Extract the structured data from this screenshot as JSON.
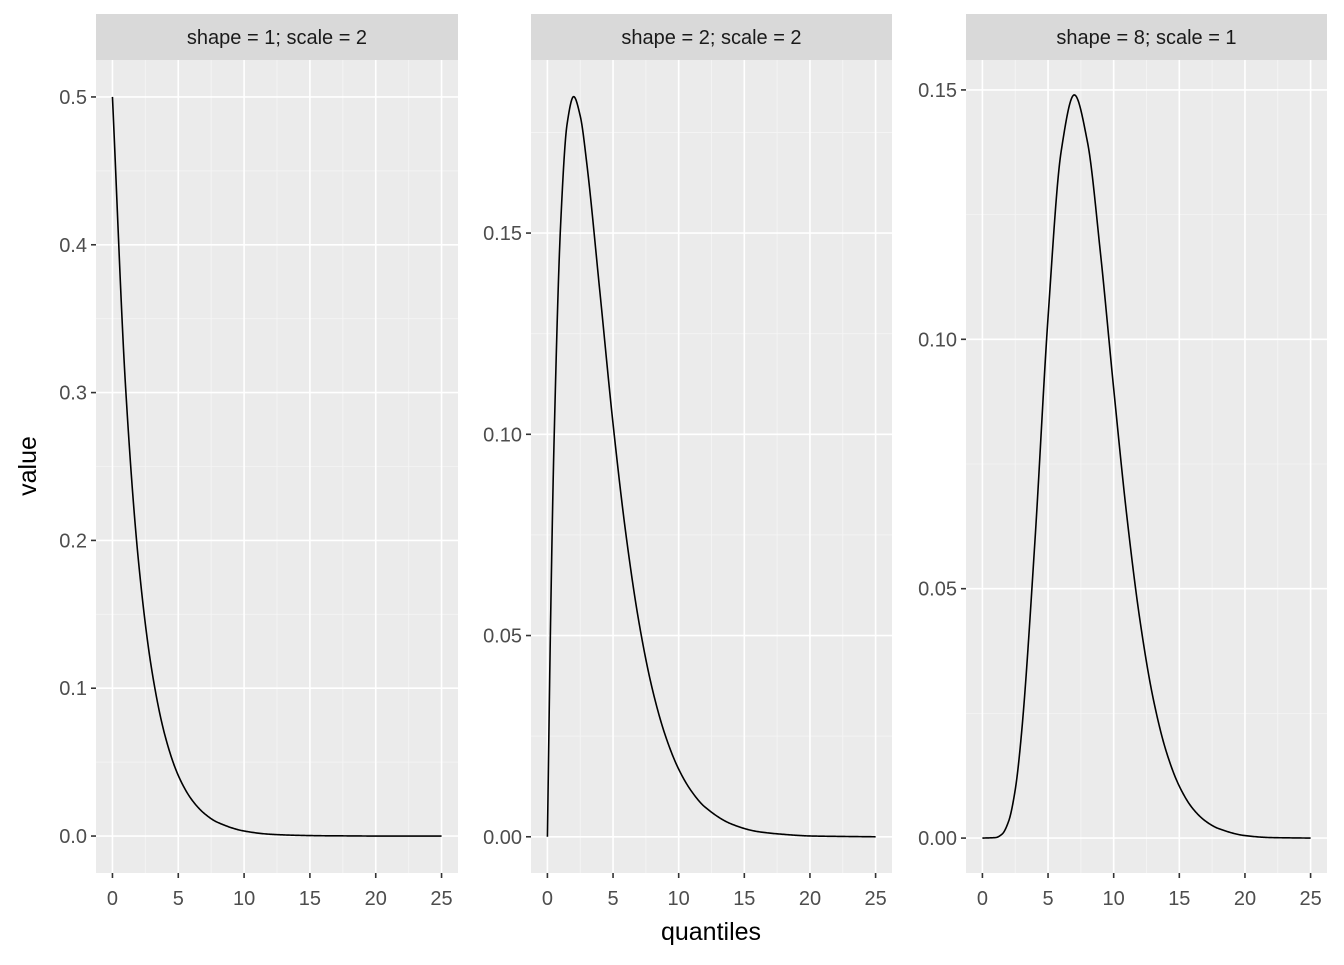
{
  "chart_data": {
    "type": "line",
    "layout": "faceted",
    "xlabel": "quantiles",
    "ylabel": "value",
    "x_domain": [
      0,
      25
    ],
    "x_ticks": [
      0,
      5,
      10,
      15,
      20,
      25
    ],
    "x_tick_labels": [
      "0",
      "5",
      "10",
      "15",
      "20",
      "25"
    ],
    "grid": true,
    "colors": {
      "panel_background": "#ebebeb",
      "strip_background": "#d9d9d9",
      "line": "#000000",
      "grid": "#ffffff"
    },
    "facets": [
      {
        "label": "shape = 1; scale = 2",
        "shape": 1,
        "scale": 2,
        "ylim": [
          -0.025,
          0.525
        ],
        "y_ticks": [
          0.0,
          0.1,
          0.2,
          0.3,
          0.4,
          0.5
        ],
        "y_tick_labels": [
          "0.0",
          "0.1",
          "0.2",
          "0.3",
          "0.4",
          "0.5"
        ],
        "x": [
          0,
          1,
          2,
          3,
          4,
          5,
          6,
          7,
          8,
          10,
          12,
          14,
          16,
          18,
          20,
          22,
          25
        ],
        "y": [
          0.5,
          0.3033,
          0.1839,
          0.1116,
          0.0677,
          0.041,
          0.0249,
          0.0151,
          0.0092,
          0.0034,
          0.0012,
          0.0005,
          0.0002,
          0.0001,
          0.0,
          0.0,
          0.0
        ]
      },
      {
        "label": "shape = 2; scale = 2",
        "shape": 2,
        "scale": 2,
        "ylim": [
          -0.009,
          0.193
        ],
        "y_ticks": [
          0.0,
          0.05,
          0.1,
          0.15
        ],
        "y_tick_labels": [
          "0.00",
          "0.05",
          "0.10",
          "0.15"
        ],
        "x": [
          0,
          0.25,
          0.5,
          1,
          1.5,
          2,
          2.5,
          3,
          4,
          5,
          6,
          7,
          8,
          9,
          10,
          11,
          12,
          14,
          16,
          18,
          20,
          22,
          25
        ],
        "y": [
          0.0,
          0.0551,
          0.0974,
          0.1516,
          0.1771,
          0.1839,
          0.1791,
          0.1673,
          0.1353,
          0.1026,
          0.0747,
          0.0528,
          0.0366,
          0.025,
          0.0168,
          0.0112,
          0.0074,
          0.0032,
          0.0013,
          0.0006,
          0.0002,
          0.0001,
          0.0
        ]
      },
      {
        "label": "shape = 8; scale = 1",
        "shape": 8,
        "scale": 1,
        "ylim": [
          -0.007,
          0.156
        ],
        "y_ticks": [
          0.0,
          0.05,
          0.1,
          0.15
        ],
        "y_tick_labels": [
          "0.00",
          "0.05",
          "0.10",
          "0.15"
        ],
        "x": [
          0,
          1,
          1.5,
          2,
          2.5,
          3,
          4,
          5,
          6,
          7,
          8,
          9,
          10,
          11,
          12,
          13,
          14,
          15,
          16,
          17,
          18,
          20,
          22,
          25
        ],
        "y": [
          0.0,
          0.0001,
          0.0008,
          0.0034,
          0.0097,
          0.0216,
          0.0595,
          0.1044,
          0.1377,
          0.149,
          0.1396,
          0.1171,
          0.0901,
          0.0646,
          0.0437,
          0.0281,
          0.0174,
          0.0104,
          0.006,
          0.0034,
          0.0019,
          0.0005,
          0.0001,
          0.0
        ]
      }
    ]
  }
}
